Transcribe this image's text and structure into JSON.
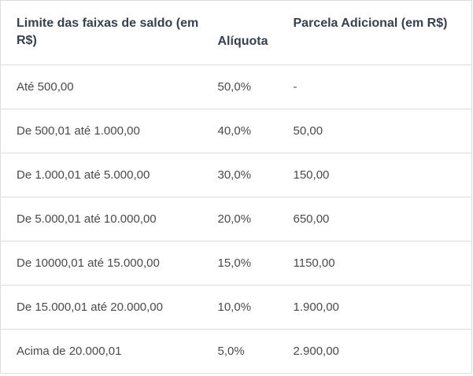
{
  "table": {
    "header": [
      "Limite das faixas de saldo (em R$)",
      "Alíquota",
      "Parcela Adicional (em R$)"
    ],
    "rows": [
      [
        "Até 500,00",
        "50,0%",
        "-"
      ],
      [
        "De 500,01 até 1.000,00",
        "40,0%",
        "50,00"
      ],
      [
        "De 1.000,01 até 5.000,00",
        "30,0%",
        "150,00"
      ],
      [
        "De 5.000,01 até 10.000,00",
        "20,0%",
        "650,00"
      ],
      [
        "De 10000,01 até 15.000,00",
        "15,0%",
        "1150,00"
      ],
      [
        "De 15.000,01 até 20.000,00",
        "10,0%",
        "1.900,00"
      ],
      [
        "Acima de 20.000,01",
        "5,0%",
        "2.900,00"
      ]
    ]
  }
}
